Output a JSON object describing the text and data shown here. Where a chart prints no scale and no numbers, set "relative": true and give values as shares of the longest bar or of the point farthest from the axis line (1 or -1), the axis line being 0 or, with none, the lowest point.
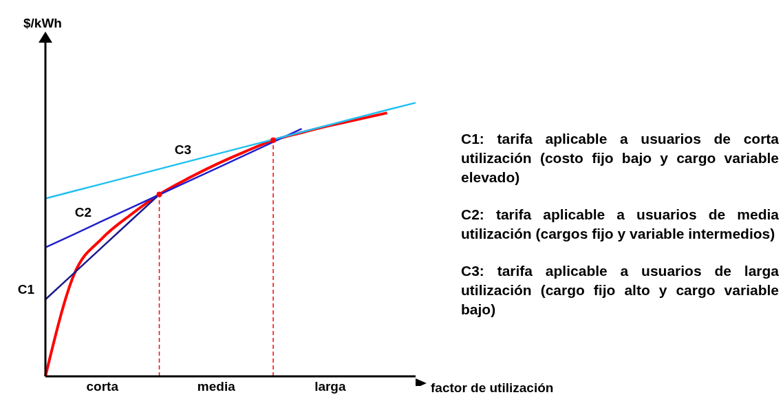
{
  "chart_data": {
    "type": "line",
    "relative": true,
    "xlabel": "factor de utilización",
    "categories": [
      null,
      null,
      "corta",
      null,
      null,
      null,
      "media",
      null,
      null,
      null,
      "larga",
      null,
      null,
      null
    ],
    "series": [
      {
        "color": "#ff0000",
        "values": [
          0,
          0.371,
          0.505,
          0.591,
          0.665,
          0.723,
          0.775,
          0.821,
          0.863,
          0.891,
          0.917,
          0.94,
          0.963,
          null
        ]
      },
      {
        "name": "C1",
        "color": "#1a1a8c",
        "values": [
          0.281,
          0.377,
          0.473,
          0.569,
          0.665,
          null,
          null,
          null,
          null,
          null,
          null,
          null,
          null,
          null
        ]
      },
      {
        "name": "C2",
        "color": "#2020d0",
        "values": [
          0.471,
          0.519,
          0.568,
          0.616,
          0.664,
          0.712,
          0.76,
          0.808,
          0.857,
          0.905,
          null,
          null,
          null,
          null
        ]
      },
      {
        "name": "C3",
        "color": "#20c0f0",
        "values": [
          0.65,
          0.677,
          0.704,
          0.731,
          0.758,
          0.785,
          0.812,
          0.839,
          0.866,
          0.893,
          0.92,
          0.947,
          0.974,
          1
        ]
      },
      {
        "type": "scatter",
        "color": "#ff0000",
        "line_style": "dashed",
        "values": [
          null,
          null,
          null,
          null,
          0.665,
          null,
          null,
          null,
          0.863,
          null,
          null,
          null,
          null,
          null
        ]
      }
    ],
    "annotations": [
      "$/kWh",
      "C1:  tarifa aplicable a usuarios de corta utilización (costo fijo bajo y cargo variable elevado)",
      "C2:  tarifa aplicable a usuarios de media utilización (cargos fijo y variable intermedios)",
      "C3:  tarifa aplicable a usuarios de larga utilización (cargo fijo alto y cargo variable bajo)"
    ]
  }
}
